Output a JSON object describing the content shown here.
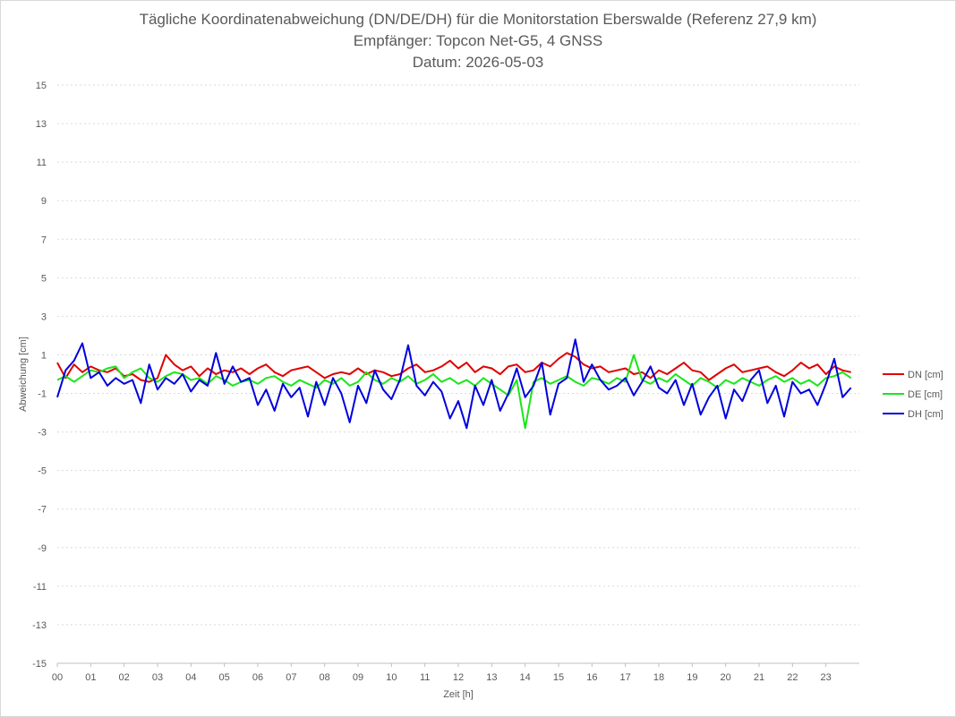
{
  "title": {
    "line1": "Tägliche Koordinatenabweichung (DN/DE/DH) für die Monitorstation Eberswalde (Referenz 27,9 km)",
    "line2": "Empfänger: Topcon Net-G5, 4 GNSS",
    "line3": "Datum: 2026-05-03"
  },
  "chart_data": {
    "type": "line",
    "xlabel": "Zeit [h]",
    "ylabel": "Abweichung [cm]",
    "xlim": [
      0,
      24
    ],
    "ylim": [
      -15,
      15
    ],
    "yticks": [
      15,
      13,
      11,
      9,
      7,
      5,
      3,
      1,
      -1,
      -3,
      -5,
      -7,
      -9,
      -11,
      -13,
      -15
    ],
    "xticks": [
      "00",
      "01",
      "02",
      "03",
      "04",
      "05",
      "06",
      "07",
      "08",
      "09",
      "10",
      "11",
      "12",
      "13",
      "14",
      "15",
      "16",
      "17",
      "18",
      "19",
      "20",
      "21",
      "22",
      "23"
    ],
    "grid": "horizontal-dotted",
    "legend_position": "right",
    "sample_interval_h": 0.25,
    "series": [
      {
        "name": "DN [cm]",
        "color": "#e00000",
        "values": [
          0.6,
          -0.2,
          0.5,
          0.1,
          0.4,
          0.2,
          0.1,
          0.3,
          -0.1,
          0.0,
          -0.3,
          -0.4,
          -0.2,
          1.0,
          0.5,
          0.2,
          0.4,
          -0.1,
          0.3,
          0.0,
          0.2,
          0.1,
          0.3,
          0.0,
          0.3,
          0.5,
          0.1,
          -0.1,
          0.2,
          0.3,
          0.4,
          0.1,
          -0.2,
          0.0,
          0.1,
          0.0,
          0.3,
          0.0,
          0.2,
          0.1,
          -0.1,
          0.0,
          0.3,
          0.5,
          0.1,
          0.2,
          0.4,
          0.7,
          0.3,
          0.6,
          0.1,
          0.4,
          0.3,
          0.0,
          0.4,
          0.5,
          0.1,
          0.2,
          0.6,
          0.4,
          0.8,
          1.1,
          0.9,
          0.5,
          0.3,
          0.4,
          0.1,
          0.2,
          0.3,
          0.0,
          0.1,
          -0.2,
          0.2,
          0.0,
          0.3,
          0.6,
          0.2,
          0.1,
          -0.3,
          0.0,
          0.3,
          0.5,
          0.1,
          0.2,
          0.3,
          0.4,
          0.1,
          -0.1,
          0.2,
          0.6,
          0.3,
          0.5,
          0.0,
          0.4,
          0.2,
          0.1
        ],
        "note": ""
      },
      {
        "name": "DE [cm]",
        "color": "#19e619",
        "values": [
          -0.3,
          -0.1,
          -0.4,
          -0.1,
          0.2,
          0.1,
          0.3,
          0.4,
          -0.2,
          0.1,
          0.3,
          -0.2,
          -0.4,
          -0.1,
          0.1,
          0.0,
          -0.3,
          -0.2,
          -0.5,
          -0.1,
          -0.3,
          -0.6,
          -0.4,
          -0.3,
          -0.5,
          -0.2,
          -0.1,
          -0.4,
          -0.6,
          -0.3,
          -0.5,
          -0.7,
          -0.3,
          -0.5,
          -0.2,
          -0.6,
          -0.4,
          0.1,
          -0.3,
          -0.5,
          -0.2,
          -0.4,
          -0.1,
          -0.5,
          -0.3,
          0.0,
          -0.4,
          -0.2,
          -0.5,
          -0.3,
          -0.6,
          -0.2,
          -0.5,
          -0.8,
          -1.1,
          -0.3,
          -2.8,
          -0.4,
          -0.2,
          -0.5,
          -0.3,
          -0.1,
          -0.4,
          -0.6,
          -0.2,
          -0.3,
          -0.5,
          -0.2,
          -0.4,
          1.0,
          -0.3,
          -0.5,
          -0.2,
          -0.4,
          0.0,
          -0.3,
          -0.6,
          -0.2,
          -0.4,
          -0.7,
          -0.3,
          -0.5,
          -0.2,
          -0.4,
          -0.6,
          -0.3,
          -0.1,
          -0.4,
          -0.2,
          -0.5,
          -0.3,
          -0.6,
          -0.2,
          -0.1,
          0.1,
          -0.2
        ]
      },
      {
        "name": "DH [cm]",
        "color": "#0000dd",
        "values": [
          -1.2,
          0.2,
          0.7,
          1.6,
          -0.2,
          0.1,
          -0.6,
          -0.2,
          -0.5,
          -0.3,
          -1.5,
          0.5,
          -0.8,
          -0.2,
          -0.5,
          0.0,
          -0.9,
          -0.3,
          -0.6,
          1.1,
          -0.5,
          0.4,
          -0.4,
          -0.2,
          -1.6,
          -0.8,
          -1.9,
          -0.5,
          -1.2,
          -0.7,
          -2.2,
          -0.4,
          -1.6,
          -0.2,
          -1.0,
          -2.5,
          -0.6,
          -1.5,
          0.2,
          -0.8,
          -1.3,
          -0.3,
          1.5,
          -0.6,
          -1.1,
          -0.4,
          -0.9,
          -2.3,
          -1.4,
          -2.8,
          -0.6,
          -1.6,
          -0.3,
          -1.9,
          -1.0,
          0.3,
          -1.2,
          -0.6,
          0.6,
          -2.1,
          -0.5,
          -0.2,
          1.8,
          -0.4,
          0.5,
          -0.3,
          -0.8,
          -0.6,
          -0.2,
          -1.1,
          -0.4,
          0.4,
          -0.7,
          -1.0,
          -0.3,
          -1.6,
          -0.5,
          -2.1,
          -1.2,
          -0.6,
          -2.3,
          -0.8,
          -1.4,
          -0.3,
          0.2,
          -1.5,
          -0.6,
          -2.2,
          -0.4,
          -1.0,
          -0.8,
          -1.6,
          -0.5,
          0.8,
          -1.2,
          -0.7
        ]
      }
    ]
  }
}
